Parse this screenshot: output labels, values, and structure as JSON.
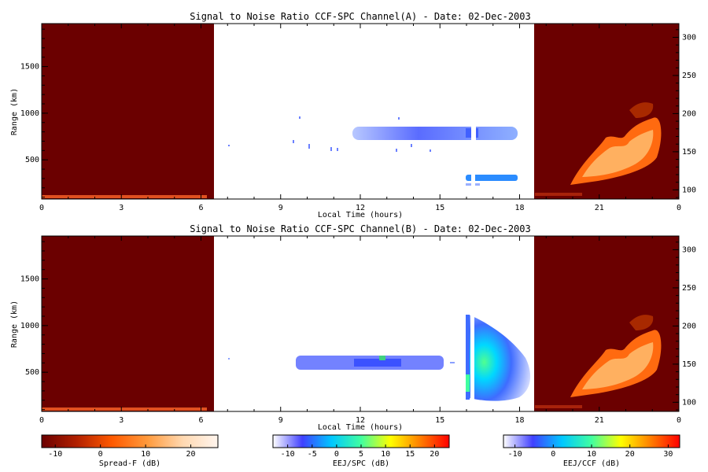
{
  "chart_data": [
    {
      "type": "heatmap",
      "title": "Signal to Noise Ratio CCF-SPC Channel(A) - Date: 02-Dec-2003",
      "xlabel": "Local Time (hours)",
      "ylabel": "Range (km)",
      "x_ticks": [
        "0",
        "3",
        "6",
        "9",
        "12",
        "15",
        "18",
        "21",
        "0"
      ],
      "y_left_ticks": [
        "500",
        "1000",
        "1500"
      ],
      "y_right_ticks": [
        "100",
        "150",
        "200",
        "250",
        "300"
      ],
      "xlim": [
        0,
        24
      ],
      "ylim": [
        80,
        1960
      ],
      "blocks": [
        {
          "name": "Spread-F",
          "x": [
            0,
            6.5
          ],
          "color": "#6b0000"
        },
        {
          "name": "Spread-F",
          "x": [
            18.5,
            24
          ],
          "color": "#6b0000"
        }
      ],
      "echo_regions": [
        {
          "x": [
            11.8,
            18
          ],
          "y": [
            730,
            830
          ],
          "dominant_db": -8,
          "note": ""
        },
        {
          "x": [
            16.1,
            18
          ],
          "y": [
            280,
            340
          ],
          "dominant_db": -2
        },
        {
          "x": [
            20.0,
            23.0
          ],
          "y": [
            250,
            850
          ],
          "dominant_db": 15,
          "scale": "Spread-F"
        }
      ]
    },
    {
      "type": "heatmap",
      "title": "Signal to Noise Ratio CCF-SPC Channel(B) - Date: 02-Dec-2003",
      "xlabel": "Local Time (hours)",
      "ylabel": "Range (km)",
      "x_ticks": [
        "0",
        "3",
        "6",
        "9",
        "12",
        "15",
        "18",
        "21",
        "0"
      ],
      "y_left_ticks": [
        "500",
        "1000",
        "1500"
      ],
      "y_right_ticks": [
        "100",
        "150",
        "200",
        "250",
        "300"
      ],
      "xlim": [
        0,
        24
      ],
      "ylim": [
        80,
        1960
      ],
      "blocks": [
        {
          "name": "Spread-F",
          "x": [
            0,
            6.5
          ],
          "color": "#6b0000"
        },
        {
          "name": "Spread-F",
          "x": [
            18.5,
            24
          ],
          "color": "#6b0000"
        }
      ],
      "echo_regions": [
        {
          "x": [
            9.7,
            14.5
          ],
          "y": [
            560,
            700
          ],
          "dominant_db": -8
        },
        {
          "x": [
            16.0,
            18.3
          ],
          "y": [
            200,
            1100
          ],
          "dominant_db": 5
        },
        {
          "x": [
            20.0,
            23.0
          ],
          "y": [
            250,
            850
          ],
          "dominant_db": 15,
          "scale": "Spread-F"
        }
      ]
    }
  ],
  "colorbars": [
    {
      "label": "Spread-F (dB)",
      "ticks": [
        "-10",
        "0",
        "10",
        "20"
      ],
      "range": [
        -13,
        26
      ],
      "stops": [
        "#6b0000",
        "#b22000",
        "#ff5a00",
        "#ff9a3c",
        "#ffd8b0",
        "#fff5ee"
      ]
    },
    {
      "label": "EEJ/SPC (dB)",
      "ticks": [
        "-10",
        "-5",
        "0",
        "5",
        "10",
        "15",
        "20"
      ],
      "range": [
        -13,
        23
      ],
      "stops": [
        "#ffffff",
        "#4040ff",
        "#00c8ff",
        "#40ffa0",
        "#ffff00",
        "#ff8000",
        "#ff0000"
      ]
    },
    {
      "label": "EEJ/CCF (dB)",
      "ticks": [
        "-10",
        "0",
        "10",
        "20",
        "30"
      ],
      "range": [
        -13,
        33
      ],
      "stops": [
        "#ffffff",
        "#4040ff",
        "#00c8ff",
        "#40ffa0",
        "#ffff00",
        "#ff8000",
        "#ff0000"
      ]
    }
  ]
}
